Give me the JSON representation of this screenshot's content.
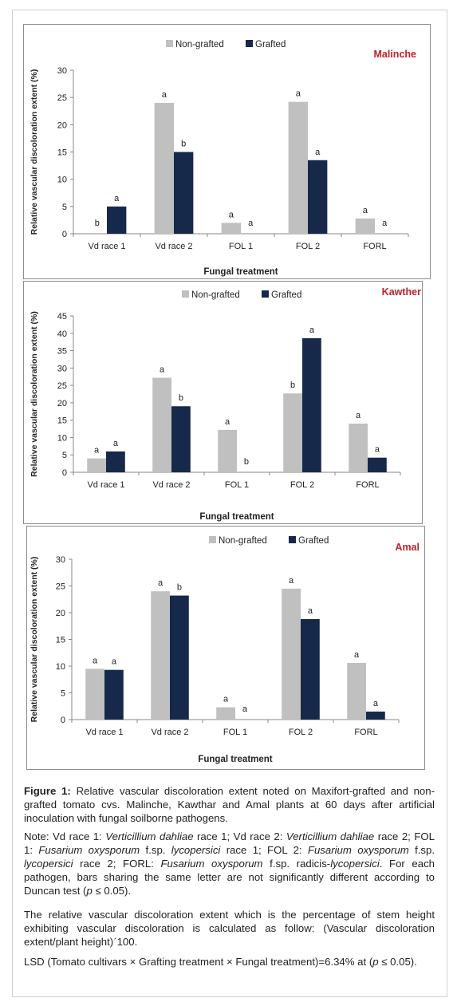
{
  "colors": {
    "nongrafted": "#c0c0c0",
    "grafted": "#17294a",
    "cultivar": "#c0202a",
    "axis": "#888888"
  },
  "chart_data": [
    {
      "type": "bar",
      "cultivar": "Malinche",
      "ylabel": "Relative vascular  discoloration  extent  (%)",
      "xlabel": "Fungal treatment",
      "categories": [
        "Vd race 1",
        "Vd race 2",
        "FOL 1",
        "FOL 2",
        "FORL"
      ],
      "ylim": [
        0,
        30
      ],
      "yticks": [
        0,
        5,
        10,
        15,
        20,
        25,
        30
      ],
      "legend": "top",
      "series": [
        {
          "name": "Non-grafted",
          "values": [
            0,
            24,
            2,
            24.2,
            2.8
          ],
          "letters": [
            "b",
            "a",
            "a",
            "a",
            "a"
          ]
        },
        {
          "name": "Grafted",
          "values": [
            5,
            15,
            0,
            13.5,
            0
          ],
          "letters": [
            "a",
            "b",
            "a",
            "a",
            "a"
          ]
        }
      ]
    },
    {
      "type": "bar",
      "cultivar": "Kawther",
      "ylabel": "Relative vascular  discoloration  extent (%)",
      "xlabel": "Fungal treatment",
      "categories": [
        "Vd race 1",
        "Vd race 2",
        "FOL 1",
        "FOL 2",
        "FORL"
      ],
      "ylim": [
        0,
        45
      ],
      "yticks": [
        0,
        5,
        10,
        15,
        20,
        25,
        30,
        35,
        40,
        45
      ],
      "legend": "top",
      "series": [
        {
          "name": "Non-grafted",
          "values": [
            4,
            27.2,
            12.2,
            22.7,
            14
          ],
          "letters": [
            "a",
            "a",
            "a",
            "b",
            "a"
          ]
        },
        {
          "name": "Grafted",
          "values": [
            6,
            19,
            0,
            38.6,
            4.2
          ],
          "letters": [
            "a",
            "b",
            "b",
            "a",
            "a"
          ]
        }
      ]
    },
    {
      "type": "bar",
      "cultivar": "Amal",
      "ylabel": "Relative vascular  discoloration  extent (%)",
      "xlabel": "Fungal treatment",
      "categories": [
        "Vd race 1",
        "Vd race 2",
        "FOL 1",
        "FOL 2",
        "FORL"
      ],
      "ylim": [
        0,
        30
      ],
      "yticks": [
        0,
        5,
        10,
        15,
        20,
        25,
        30
      ],
      "legend": "top",
      "series": [
        {
          "name": "Non-grafted",
          "values": [
            9.5,
            24,
            2.3,
            24.5,
            10.6
          ],
          "letters": [
            "a",
            "a",
            "a",
            "a",
            "a"
          ]
        },
        {
          "name": "Grafted",
          "values": [
            9.3,
            23.2,
            0,
            18.8,
            1.5
          ],
          "letters": [
            "a",
            "b",
            "a",
            "a",
            "a"
          ]
        }
      ]
    }
  ],
  "caption": {
    "figure_label": "Figure 1:",
    "figure_text": " Relative vascular discoloration extent noted on Maxifort-grafted and non-grafted tomato cvs. Malinche, Kawthar and Amal plants at 60 days after artificial inoculation with fungal soilborne pathogens.",
    "note_parts": [
      {
        "t": "Note: Vd race 1: ",
        "i": false
      },
      {
        "t": "Verticillium dahliae",
        "i": true
      },
      {
        "t": " race 1; Vd race 2: ",
        "i": false
      },
      {
        "t": "Verticillium dahliae",
        "i": true
      },
      {
        "t": " race 2; FOL 1: ",
        "i": false
      },
      {
        "t": "Fusarium oxysporum",
        "i": true
      },
      {
        "t": " f.sp. ",
        "i": false
      },
      {
        "t": "lycopersici",
        "i": true
      },
      {
        "t": " race 1; FOL 2: ",
        "i": false
      },
      {
        "t": "Fusarium oxysporum",
        "i": true
      },
      {
        "t": " f.sp. ",
        "i": false
      },
      {
        "t": "lycopersici",
        "i": true
      },
      {
        "t": " race 2; FORL: ",
        "i": false
      },
      {
        "t": "Fusarium oxysporum",
        "i": true
      },
      {
        "t": " f.sp. radicis-",
        "i": false
      },
      {
        "t": "lycopersici",
        "i": true
      },
      {
        "t": ". For each pathogen, bars sharing the same letter are not significantly different according to Duncan test (",
        "i": false
      },
      {
        "t": "p",
        "i": true
      },
      {
        "t": " ≤ 0.05).",
        "i": false
      }
    ],
    "calc_text": "The relative vascular discoloration extent which is the percentage of stem height exhibiting vascular discoloration is calculated as follow: (Vascular discoloration extent/plant height)ˊ100.",
    "lsd_parts": [
      {
        "t": "LSD (Tomato cultivars × Grafting treatment × Fungal treatment)=6.34% at (",
        "i": false
      },
      {
        "t": "p",
        "i": true
      },
      {
        "t": " ≤ 0.05).",
        "i": false
      }
    ]
  }
}
